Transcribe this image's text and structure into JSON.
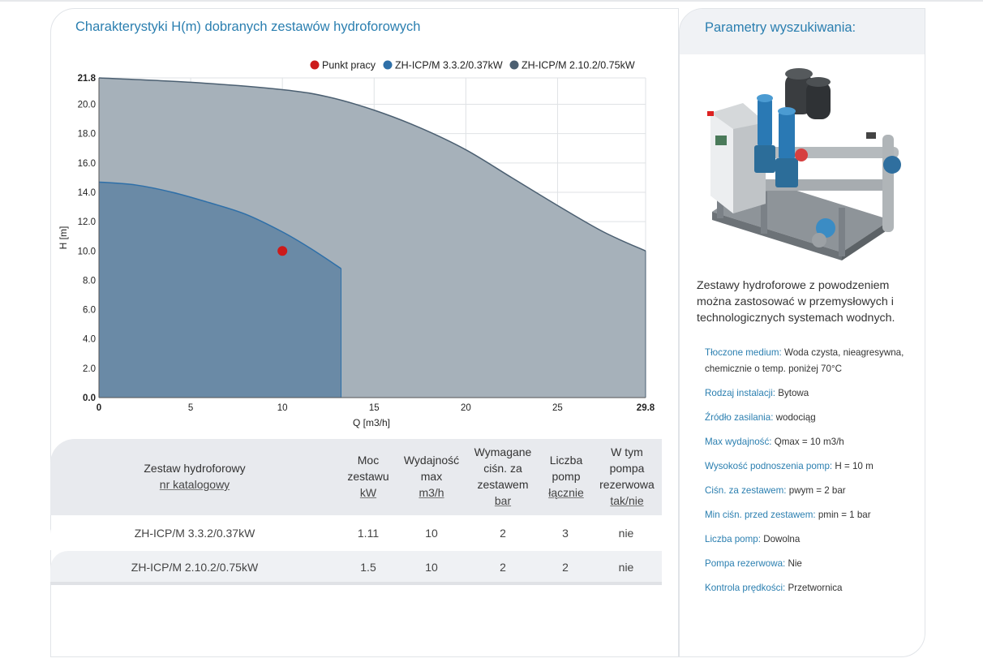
{
  "main": {
    "title": "Charakterystyki H(m) dobranych zestawów hydroforowych"
  },
  "chart_data": {
    "type": "area",
    "xlabel": "Q [m3/h]",
    "ylabel": "H [m]",
    "xlim": [
      0,
      29.8
    ],
    "ylim": [
      0,
      21.8
    ],
    "xticks": [
      "0",
      "5",
      "10",
      "15",
      "20",
      "25",
      "29.8"
    ],
    "yticks": [
      "0.0",
      "2.0",
      "4.0",
      "6.0",
      "8.0",
      "10.0",
      "12.0",
      "14.0",
      "16.0",
      "18.0",
      "20.0",
      "21.8"
    ],
    "grid": true,
    "legend_position": "top-right",
    "legend": [
      "Punkt pracy",
      "ZH-ICP/M 3.3.2/0.37kW",
      "ZH-ICP/M 2.10.2/0.75kW"
    ],
    "series": [
      {
        "name": "ZH-ICP/M 2.10.2/0.75kW",
        "color": "#4b5f71",
        "x": [
          0,
          5,
          10,
          12.5,
          15,
          17.5,
          20,
          22.5,
          25,
          27.5,
          29.8
        ],
        "y": [
          21.8,
          21.5,
          21.0,
          20.5,
          19.6,
          18.4,
          16.9,
          15.0,
          13.1,
          11.3,
          10.0
        ]
      },
      {
        "name": "ZH-ICP/M 3.3.2/0.37kW",
        "color": "#2e6fa8",
        "x": [
          0,
          2,
          4,
          6,
          8,
          10,
          11.5,
          13.2
        ],
        "y": [
          14.7,
          14.5,
          14.0,
          13.3,
          12.5,
          11.3,
          10.2,
          8.8
        ]
      }
    ],
    "points": [
      {
        "name": "Punkt pracy",
        "color": "#cc1b1b",
        "x": 10,
        "y": 10
      }
    ]
  },
  "table": {
    "headers": [
      {
        "l1": "Zestaw hydroforowy",
        "l2": "",
        "l3": "",
        "unit": "nr katalogowy"
      },
      {
        "l1": "Moc",
        "l2": "zestawu",
        "l3": "",
        "unit": "kW"
      },
      {
        "l1": "Wydajność",
        "l2": "max",
        "l3": "",
        "unit": "m3/h"
      },
      {
        "l1": "Wymagane",
        "l2": "ciśn. za",
        "l3": "zestawem",
        "unit": "bar"
      },
      {
        "l1": "Liczba",
        "l2": "pomp",
        "l3": "",
        "unit": "łącznie"
      },
      {
        "l1": "W tym",
        "l2": "pompa",
        "l3": "rezerwowa",
        "unit": "tak/nie"
      }
    ],
    "rows": [
      [
        "ZH-ICP/M 3.3.2/0.37kW",
        "1.11",
        "10",
        "2",
        "3",
        "nie"
      ],
      [
        "ZH-ICP/M 2.10.2/0.75kW",
        "1.5",
        "10",
        "2",
        "2",
        "nie"
      ]
    ]
  },
  "sidebar": {
    "title": "Parametry wyszukiwania:",
    "description": "Zestawy hydroforowe z powodzeniem można zastosować w przemysłowych i technologicznych systemach wodnych.",
    "params": [
      {
        "label": "Tłoczone medium:",
        "value": "Woda czysta, nieagresywna, chemicznie o temp. poniżej 70°C"
      },
      {
        "label": "Rodzaj instalacji:",
        "value": "Bytowa"
      },
      {
        "label": "Źródło zasilania:",
        "value": "wodociąg"
      },
      {
        "label": "Max wydajność:",
        "value": "Qmax = 10 m3/h"
      },
      {
        "label": "Wysokość podnoszenia pomp:",
        "value": "H = 10 m"
      },
      {
        "label": "Ciśn. za zestawem:",
        "value": "pwym = 2 bar"
      },
      {
        "label": "Min ciśn. przed zestawem:",
        "value": "pmin = 1 bar"
      },
      {
        "label": "Liczba pomp:",
        "value": "Dowolna"
      },
      {
        "label": "Pompa rezerwowa:",
        "value": "Nie"
      },
      {
        "label": "Kontrola prędkości:",
        "value": "Przetwornica"
      }
    ]
  },
  "colors": {
    "accent": "#2b7fb0",
    "series_large": "#4b5f71",
    "series_small": "#2e6fa8",
    "work_point": "#cc1b1b"
  }
}
